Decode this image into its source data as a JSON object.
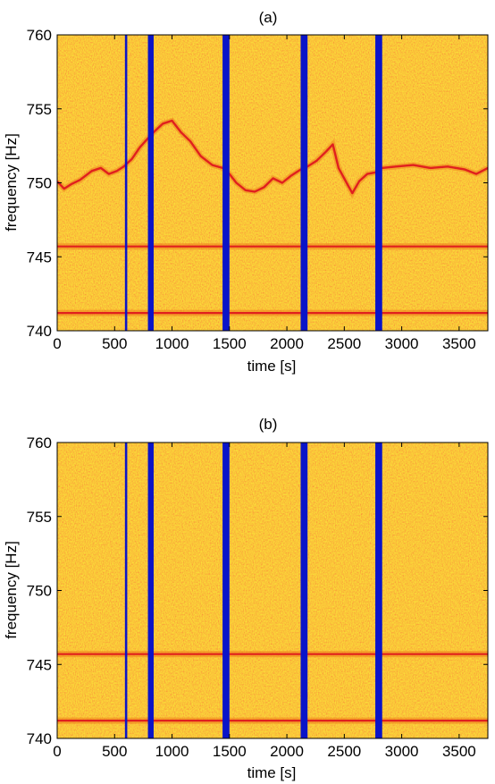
{
  "chart_data": [
    {
      "type": "heatmap",
      "title": "(a)",
      "xlabel": "time [s]",
      "ylabel": "frequency [Hz]",
      "xlim": [
        0,
        3750
      ],
      "ylim": [
        740,
        760
      ],
      "xticks": [
        0,
        500,
        1000,
        1500,
        2000,
        2500,
        3000,
        3500
      ],
      "yticks": [
        740,
        745,
        750,
        755,
        760
      ],
      "grid": false,
      "colormap": {
        "background": "#f5c81e",
        "noise_light": "#fdf53a",
        "noise_dark": "#ee7d1b",
        "line": "#e0201e",
        "gap": "#0a14c8"
      },
      "gaps": [
        [
          590,
          610
        ],
        [
          790,
          840
        ],
        [
          1440,
          1500
        ],
        [
          2120,
          2180
        ],
        [
          2770,
          2830
        ]
      ],
      "horizontal_lines": [
        745.7,
        741.2
      ],
      "wandering_line": [
        {
          "x": 0,
          "y": 750.1
        },
        {
          "x": 60,
          "y": 749.6
        },
        {
          "x": 120,
          "y": 749.9
        },
        {
          "x": 200,
          "y": 750.2
        },
        {
          "x": 300,
          "y": 750.8
        },
        {
          "x": 380,
          "y": 751.0
        },
        {
          "x": 450,
          "y": 750.6
        },
        {
          "x": 520,
          "y": 750.8
        },
        {
          "x": 580,
          "y": 751.1
        },
        {
          "x": 650,
          "y": 751.6
        },
        {
          "x": 720,
          "y": 752.4
        },
        {
          "x": 790,
          "y": 753.0
        },
        {
          "x": 850,
          "y": 753.5
        },
        {
          "x": 920,
          "y": 754.0
        },
        {
          "x": 1000,
          "y": 754.2
        },
        {
          "x": 1080,
          "y": 753.4
        },
        {
          "x": 1160,
          "y": 752.8
        },
        {
          "x": 1250,
          "y": 751.8
        },
        {
          "x": 1350,
          "y": 751.2
        },
        {
          "x": 1440,
          "y": 751.0
        },
        {
          "x": 1500,
          "y": 750.6
        },
        {
          "x": 1560,
          "y": 750.0
        },
        {
          "x": 1640,
          "y": 749.5
        },
        {
          "x": 1720,
          "y": 749.4
        },
        {
          "x": 1800,
          "y": 749.7
        },
        {
          "x": 1880,
          "y": 750.3
        },
        {
          "x": 1960,
          "y": 750.0
        },
        {
          "x": 2040,
          "y": 750.5
        },
        {
          "x": 2120,
          "y": 750.9
        },
        {
          "x": 2180,
          "y": 751.1
        },
        {
          "x": 2260,
          "y": 751.5
        },
        {
          "x": 2340,
          "y": 752.1
        },
        {
          "x": 2400,
          "y": 752.6
        },
        {
          "x": 2450,
          "y": 751.0
        },
        {
          "x": 2520,
          "y": 750.0
        },
        {
          "x": 2570,
          "y": 749.3
        },
        {
          "x": 2630,
          "y": 750.1
        },
        {
          "x": 2700,
          "y": 750.6
        },
        {
          "x": 2770,
          "y": 750.7
        },
        {
          "x": 2830,
          "y": 751.0
        },
        {
          "x": 2950,
          "y": 751.1
        },
        {
          "x": 3100,
          "y": 751.2
        },
        {
          "x": 3250,
          "y": 751.0
        },
        {
          "x": 3400,
          "y": 751.1
        },
        {
          "x": 3550,
          "y": 750.9
        },
        {
          "x": 3650,
          "y": 750.6
        },
        {
          "x": 3750,
          "y": 751.0
        }
      ]
    },
    {
      "type": "heatmap",
      "title": "(b)",
      "xlabel": "time [s]",
      "ylabel": "frequency [Hz]",
      "xlim": [
        0,
        3750
      ],
      "ylim": [
        740,
        760
      ],
      "xticks": [
        0,
        500,
        1000,
        1500,
        2000,
        2500,
        3000,
        3500
      ],
      "yticks": [
        740,
        745,
        750,
        755,
        760
      ],
      "grid": false,
      "colormap": {
        "background": "#f5c81e",
        "noise_light": "#fdf53a",
        "noise_dark": "#ee7d1b",
        "line": "#e0201e",
        "gap": "#0a14c8"
      },
      "gaps": [
        [
          590,
          610
        ],
        [
          790,
          840
        ],
        [
          1440,
          1500
        ],
        [
          2120,
          2180
        ],
        [
          2770,
          2830
        ]
      ],
      "horizontal_lines": [
        745.7,
        741.2
      ],
      "wandering_line": []
    }
  ]
}
